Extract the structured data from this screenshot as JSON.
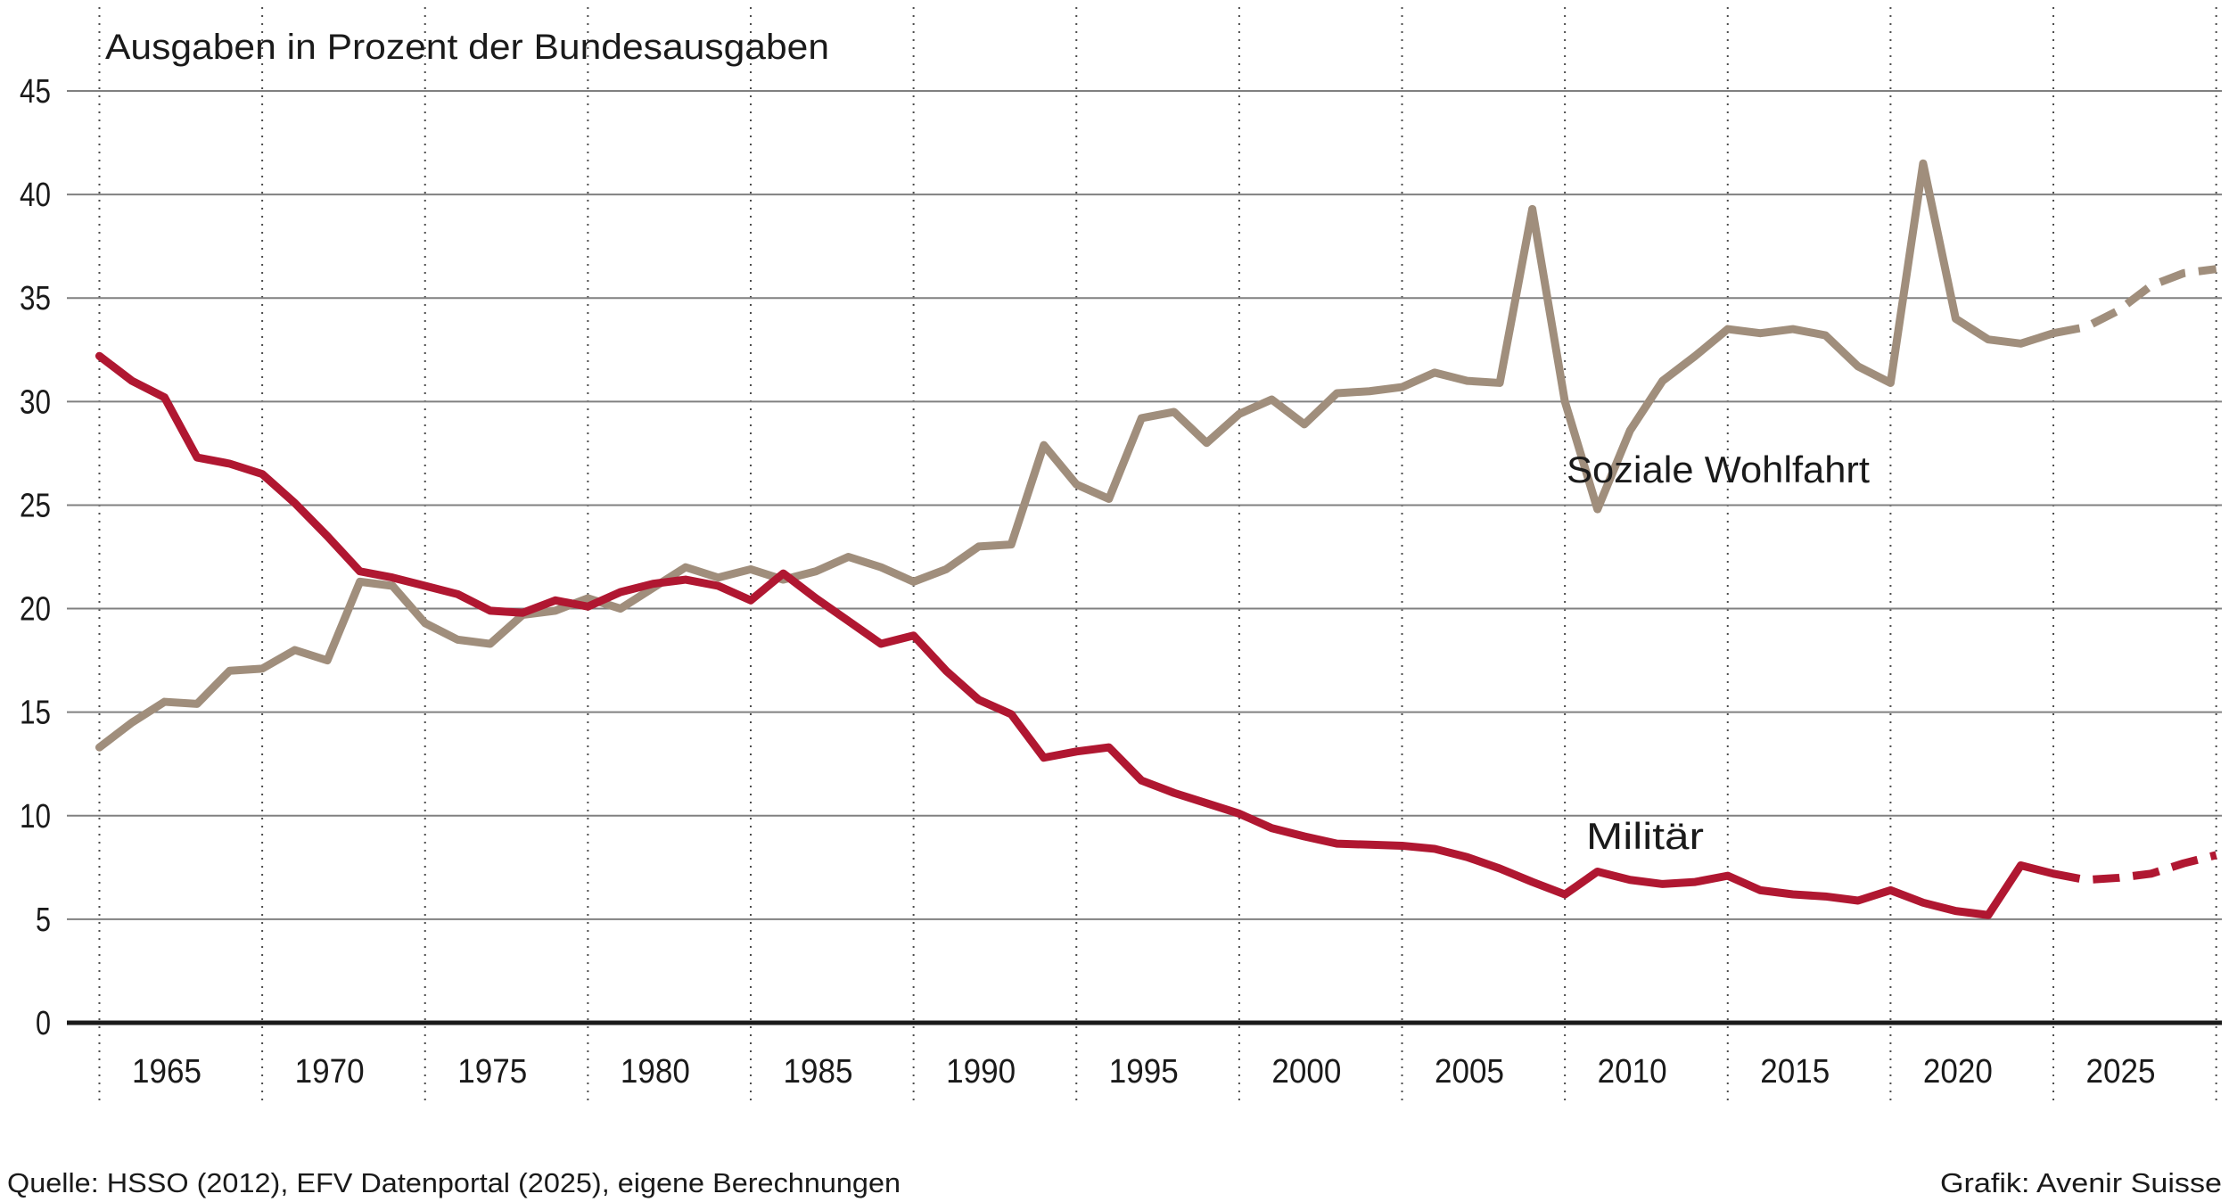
{
  "title": "Ausgaben in Prozent der Bundesausgaben",
  "source": "Quelle: HSSO (2012), EFV Datenportal (2025), eigene Berechnungen",
  "credit": "Grafik: Avenir Suisse",
  "colors": {
    "militaer": "#b01731",
    "wohlfahrt": "#a08e7c",
    "grid": "#808080",
    "axis": "#1a1a1a",
    "vline": "#4d4d4d",
    "text": "#1a1a1a",
    "background": "#ffffff"
  },
  "chart_data": {
    "type": "line",
    "title": "Ausgaben in Prozent der Bundesausgaben",
    "xlabel": "",
    "ylabel": "",
    "ylim": [
      0,
      45
    ],
    "ytick_step": 5,
    "yticks": [
      0,
      5,
      10,
      15,
      20,
      25,
      30,
      35,
      40,
      45
    ],
    "xtick_label_years": [
      1965,
      1970,
      1975,
      1980,
      1985,
      1990,
      1995,
      2000,
      2005,
      2010,
      2015,
      2020,
      2025
    ],
    "vline_years": [
      1964,
      1969,
      1974,
      1979,
      1984,
      1989,
      1994,
      1999,
      2004,
      2009,
      2014,
      2019,
      2024,
      2029
    ],
    "grid": "horizontal-solid, vertical-dotted",
    "legend_position": "inline-labels",
    "years": [
      1964,
      1965,
      1966,
      1967,
      1968,
      1969,
      1970,
      1971,
      1972,
      1973,
      1974,
      1975,
      1976,
      1977,
      1978,
      1979,
      1980,
      1981,
      1982,
      1983,
      1984,
      1985,
      1986,
      1987,
      1988,
      1989,
      1990,
      1991,
      1992,
      1993,
      1994,
      1995,
      1996,
      1997,
      1998,
      1999,
      2000,
      2001,
      2002,
      2003,
      2004,
      2005,
      2006,
      2007,
      2008,
      2009,
      2010,
      2011,
      2012,
      2013,
      2014,
      2015,
      2016,
      2017,
      2018,
      2019,
      2020,
      2021,
      2022,
      2023,
      2024,
      2025,
      2026,
      2027,
      2028,
      2029
    ],
    "dashed_projection_from_year": 2024,
    "series": [
      {
        "name": "Soziale Wohlfahrt",
        "label_text": "Soziale Wohlfahrt",
        "color": "#a08e7c",
        "values": [
          13.3,
          14.5,
          15.5,
          15.4,
          17.0,
          17.1,
          18.0,
          17.5,
          21.3,
          21.1,
          19.3,
          18.5,
          18.3,
          19.7,
          19.9,
          20.5,
          20.0,
          21.0,
          22.0,
          21.5,
          21.9,
          21.4,
          21.8,
          22.5,
          22.0,
          21.3,
          21.9,
          23.0,
          23.1,
          27.9,
          26.0,
          25.3,
          29.2,
          29.5,
          28.0,
          29.4,
          30.1,
          28.9,
          30.4,
          30.5,
          30.7,
          31.4,
          31.0,
          30.9,
          39.3,
          30.0,
          24.8,
          28.6,
          31.0,
          32.2,
          33.5,
          33.3,
          33.5,
          33.2,
          31.7,
          30.9,
          41.5,
          34.0,
          33.0,
          32.8,
          33.3,
          33.6,
          34.4,
          35.6,
          36.2,
          36.4
        ]
      },
      {
        "name": "Militär",
        "label_text": "Militär",
        "color": "#b01731",
        "values": [
          32.2,
          31.0,
          30.2,
          27.3,
          27.0,
          26.5,
          25.1,
          23.5,
          21.8,
          21.5,
          21.1,
          20.7,
          19.9,
          19.8,
          20.4,
          20.1,
          20.8,
          21.2,
          21.4,
          21.1,
          20.4,
          21.7,
          20.5,
          19.4,
          18.3,
          18.7,
          17.0,
          15.6,
          14.9,
          12.8,
          13.1,
          13.3,
          11.7,
          11.1,
          10.6,
          10.1,
          9.4,
          9.0,
          8.65,
          8.6,
          8.55,
          8.4,
          8.0,
          7.45,
          6.8,
          6.2,
          7.3,
          6.9,
          6.7,
          6.8,
          7.1,
          6.4,
          6.2,
          6.1,
          5.9,
          6.4,
          5.8,
          5.4,
          5.2,
          7.6,
          7.2,
          6.9,
          7.0,
          7.2,
          7.7,
          8.1
        ]
      }
    ]
  },
  "labels": {
    "wohlfahrt": "Soziale Wohlfahrt",
    "militaer": "Militär"
  }
}
